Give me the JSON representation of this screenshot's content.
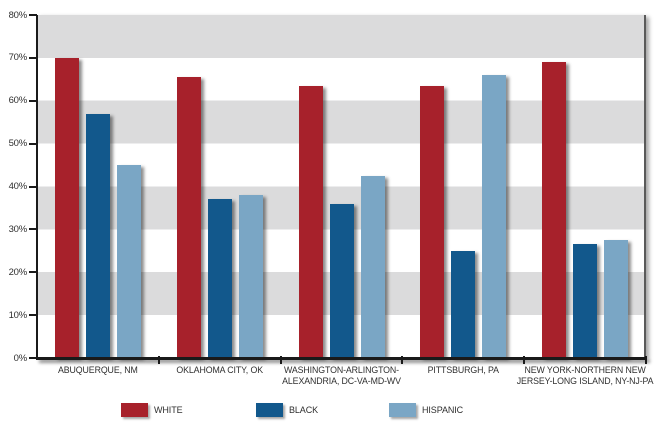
{
  "chart_data": {
    "type": "bar",
    "title": "",
    "xlabel": "",
    "ylabel": "",
    "ylim": [
      0,
      80
    ],
    "y_tick_step": 10,
    "y_tick_labels": [
      "0%",
      "10%",
      "20%",
      "30%",
      "40%",
      "50%",
      "60%",
      "70%",
      "80%"
    ],
    "grid": "alternating horizontal bands, gray from 70-80, 50-60, 30-40, 10-20",
    "legend_position": "bottom",
    "categories": [
      {
        "label": "ABUQUERQUE, NM",
        "lines": [
          "ABUQUERQUE, NM"
        ]
      },
      {
        "label": "OKLAHOMA CITY, OK",
        "lines": [
          "OKLAHOMA CITY, OK"
        ]
      },
      {
        "label": "WASHINGTON-ARLINGTON-ALEXANDRIA, DC-VA-MD-WV",
        "lines": [
          "WASHINGTON-ARLINGTON-",
          "ALEXANDRIA, DC-VA-MD-WV"
        ]
      },
      {
        "label": "PITTSBURGH, PA",
        "lines": [
          "PITTSBURGH, PA"
        ]
      },
      {
        "label": "NEW YORK-NORTHERN NEW JERSEY-LONG ISLAND, NY-NJ-PA",
        "lines": [
          "NEW YORK-NORTHERN NEW",
          "JERSEY-LONG ISLAND, NY-NJ-PA"
        ]
      }
    ],
    "series": [
      {
        "name": "WHITE",
        "color": "#A7212B",
        "values": [
          70,
          65.5,
          63.5,
          63.5,
          69
        ]
      },
      {
        "name": "BLACK",
        "color": "#12588C",
        "values": [
          57,
          37,
          36,
          25,
          26.5
        ]
      },
      {
        "name": "HISPANIC",
        "color": "#7AA6C5",
        "values": [
          45,
          38,
          42.5,
          66,
          27.5
        ]
      }
    ]
  },
  "colors": {
    "band_gray": "#DBDBDC",
    "axis_black": "#1A1A1A",
    "plot_right_border": "#5A5A5A",
    "text": "#2F2F2F",
    "background": "#FFFFFF"
  },
  "legend": {
    "items": [
      {
        "label": "WHITE",
        "color": "#A7212B"
      },
      {
        "label": "BLACK",
        "color": "#12588C"
      },
      {
        "label": "HISPANIC",
        "color": "#7AA6C5"
      }
    ]
  }
}
